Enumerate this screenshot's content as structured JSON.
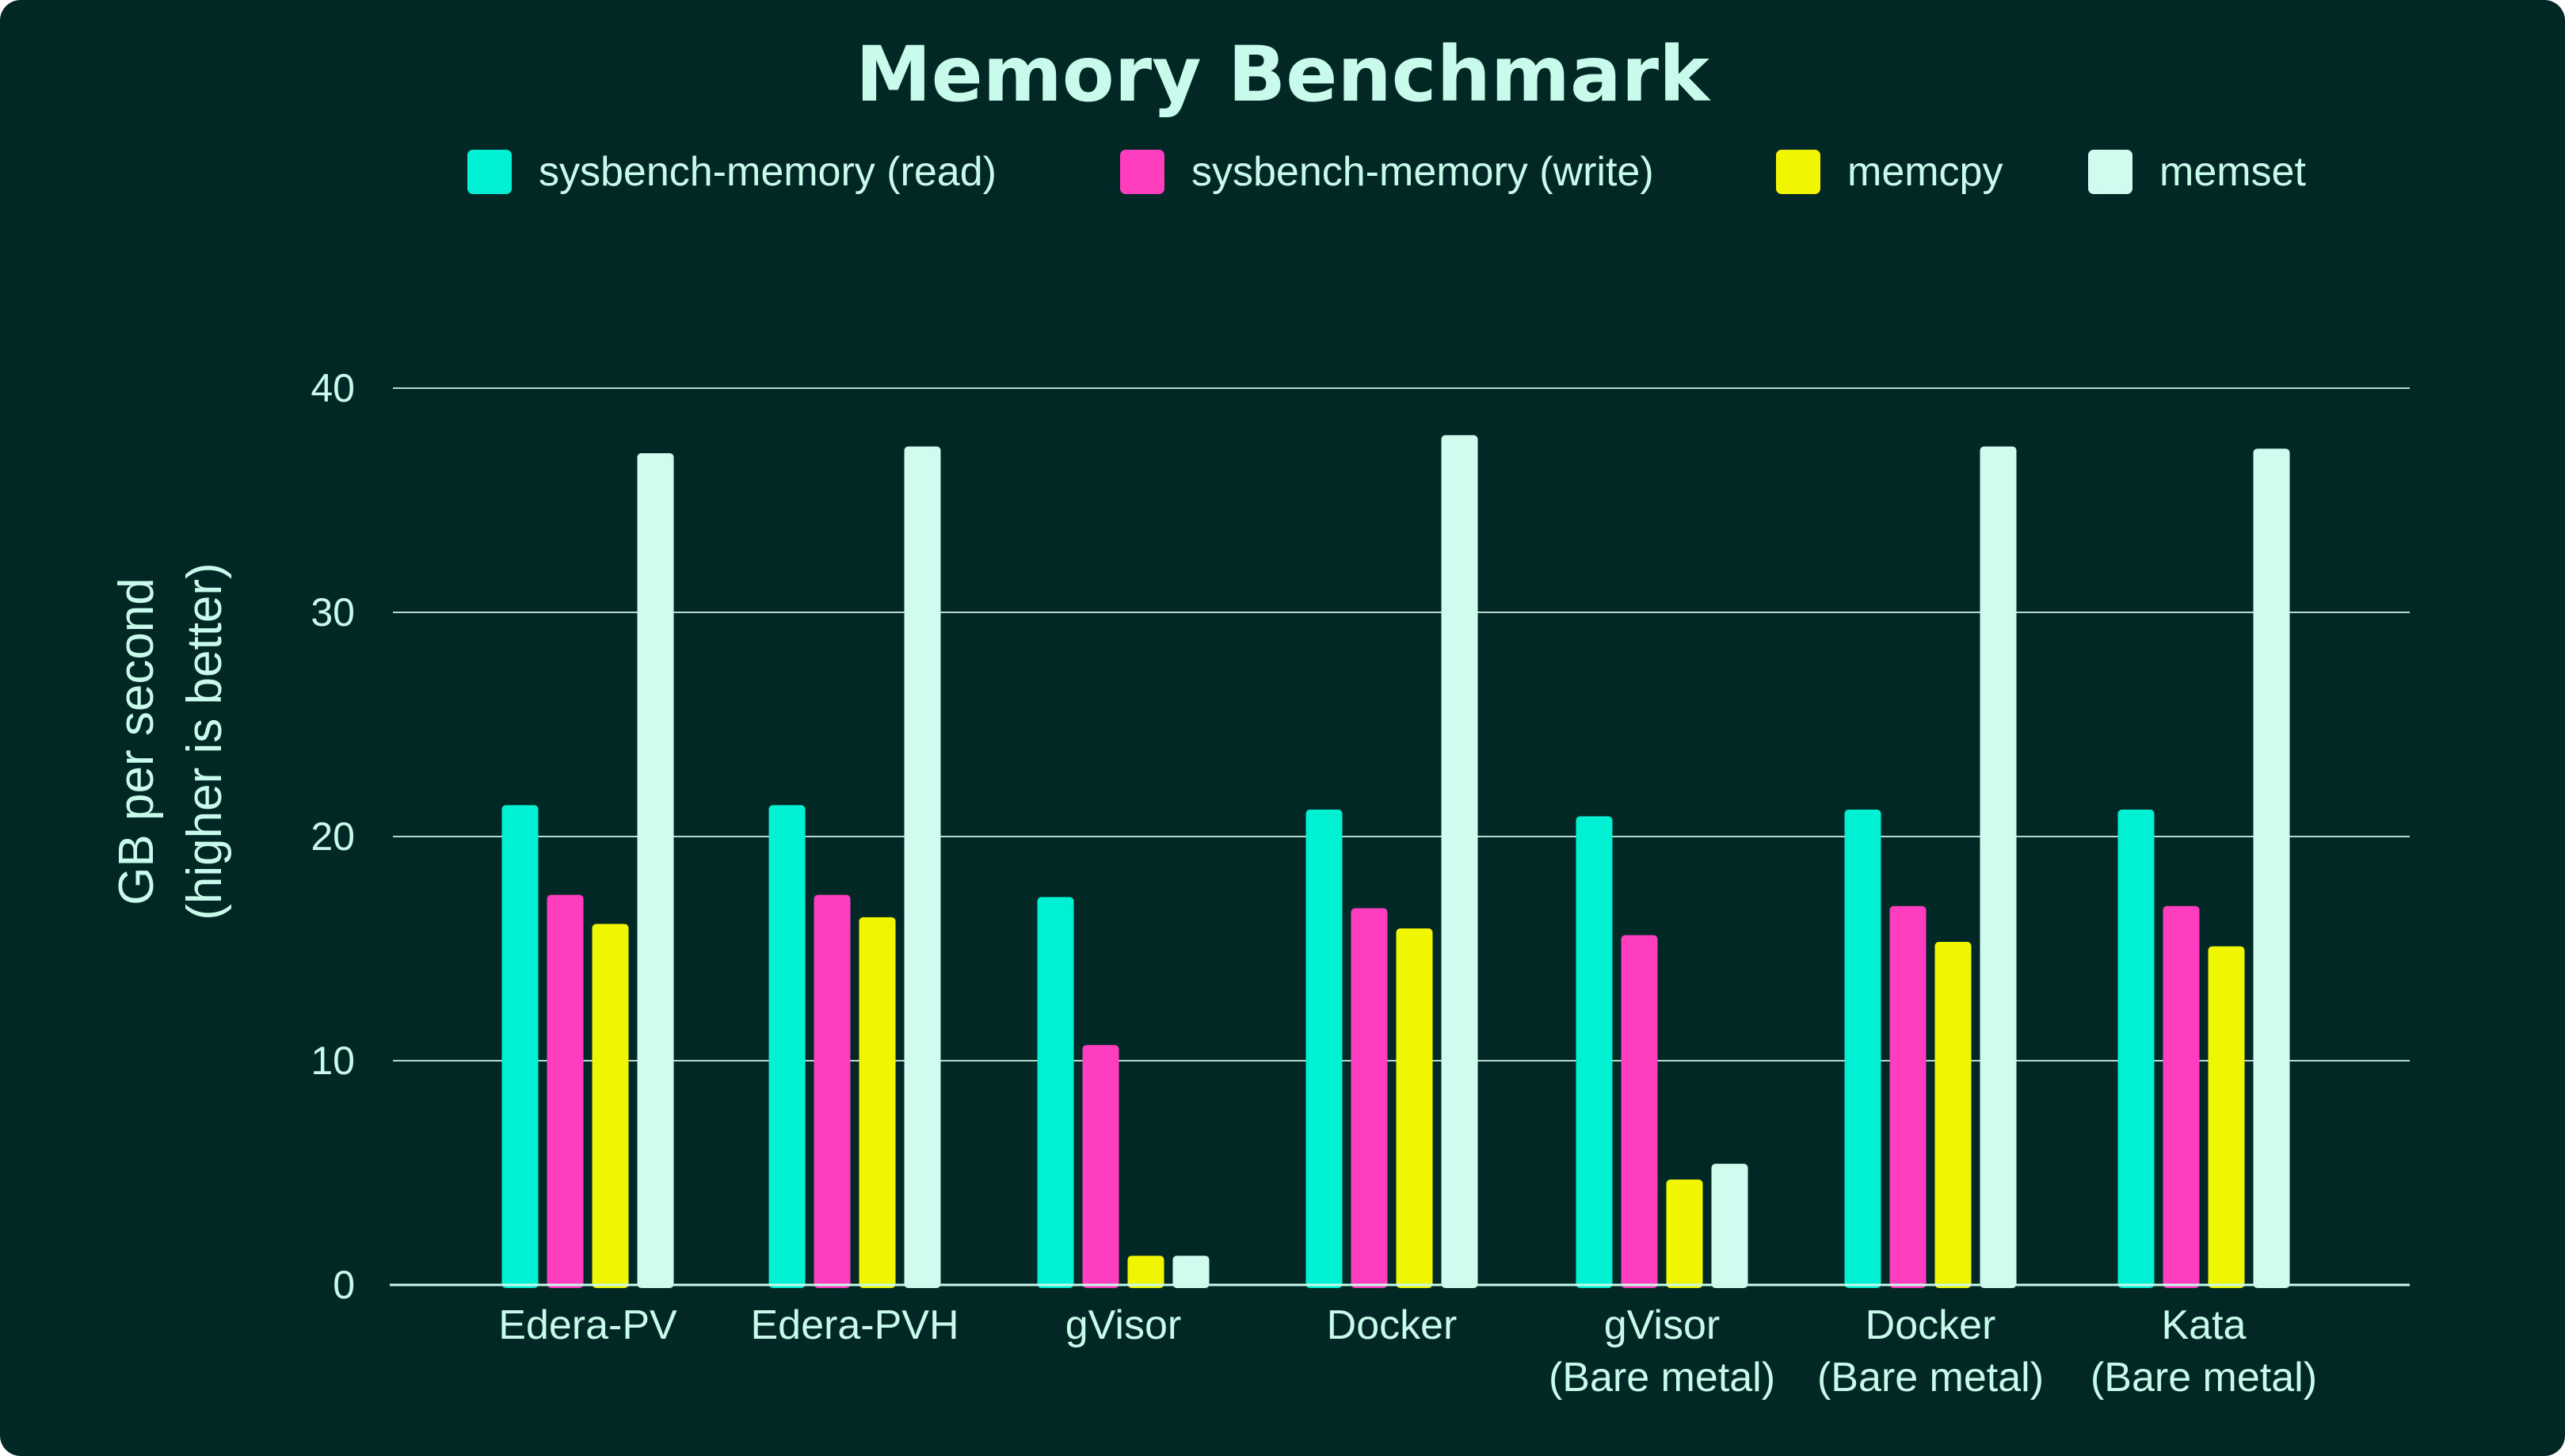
{
  "chart_data": {
    "type": "bar",
    "title": "Memory Benchmark",
    "xlabel": "",
    "ylabel": [
      "GB per second",
      "(higher is better)"
    ],
    "ylim": [
      0,
      40
    ],
    "yticks": [
      0,
      10,
      20,
      30,
      40
    ],
    "grid": true,
    "legend_position": "top",
    "categories": [
      [
        "Edera-PV"
      ],
      [
        "Edera-PVH"
      ],
      [
        "gVisor"
      ],
      [
        "Docker"
      ],
      [
        "gVisor",
        "(Bare metal)"
      ],
      [
        "Docker",
        "(Bare metal)"
      ],
      [
        "Kata",
        "(Bare metal)"
      ]
    ],
    "series": [
      {
        "name": "sysbench-memory (read)",
        "color": "#00f0d4",
        "values": [
          21.4,
          21.4,
          17.3,
          21.2,
          20.9,
          21.2,
          21.2
        ]
      },
      {
        "name": "sysbench-memory (write)",
        "color": "#ff3ebf",
        "values": [
          17.4,
          17.4,
          10.7,
          16.8,
          15.6,
          16.9,
          16.9
        ]
      },
      {
        "name": "memcpy",
        "color": "#f0f500",
        "values": [
          16.1,
          16.4,
          1.3,
          15.9,
          4.7,
          15.3,
          15.1
        ]
      },
      {
        "name": "memset",
        "color": "#cffcee",
        "values": [
          37.1,
          37.4,
          1.3,
          37.9,
          5.4,
          37.4,
          37.3
        ]
      }
    ]
  }
}
